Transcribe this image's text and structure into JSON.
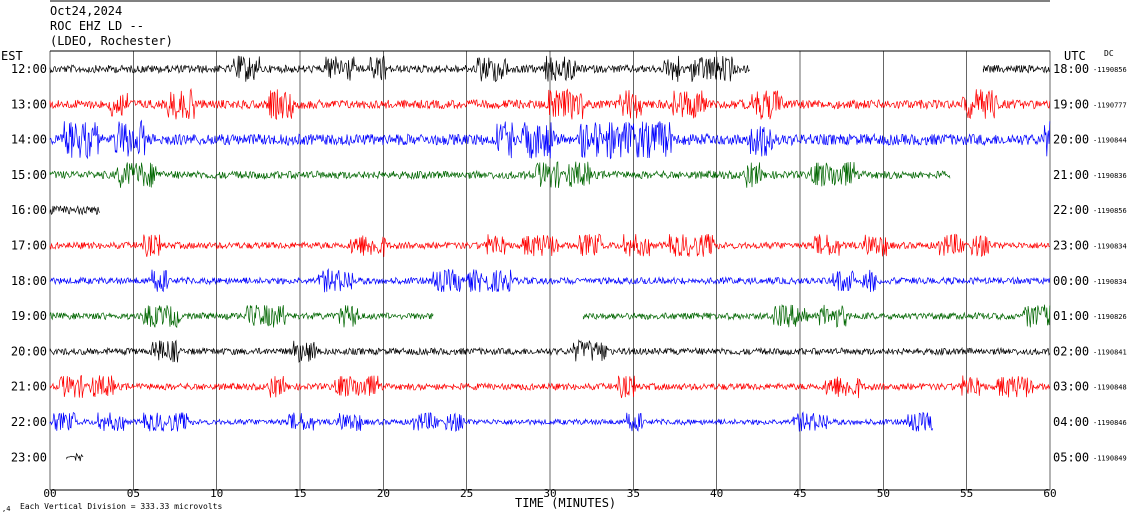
{
  "header": {
    "date": "Oct24,2024",
    "station": "ROC EHZ LD --",
    "network": "(LDEO, Rochester)"
  },
  "chart_data": {
    "type": "line",
    "title": "",
    "left_axis_title": "EST",
    "right_axis_title": "UTC",
    "dc_label": "DC",
    "xlabel": "TIME (MINUTES)",
    "xlim": [
      0,
      60
    ],
    "x_ticks": [
      "00",
      "05",
      "10",
      "15",
      "20",
      "25",
      "30",
      "35",
      "40",
      "45",
      "50",
      "55",
      "60"
    ],
    "scale_note": "Each Vertical Division =  333.33 microvolts",
    "grid": true,
    "rows": [
      {
        "est": "12:00",
        "utc": "18:00",
        "dc": "-1190856",
        "color": "#000000",
        "amp": 7,
        "segments": [
          [
            0,
            42
          ],
          [
            56,
            60
          ]
        ]
      },
      {
        "est": "13:00",
        "utc": "19:00",
        "dc": "-1190777",
        "color": "#ff0000",
        "amp": 8,
        "segments": [
          [
            0,
            60
          ]
        ]
      },
      {
        "est": "14:00",
        "utc": "20:00",
        "dc": "-1190844",
        "color": "#0000ff",
        "amp": 10,
        "segments": [
          [
            0,
            60
          ]
        ]
      },
      {
        "est": "15:00",
        "utc": "21:00",
        "dc": "-1190836",
        "color": "#006600",
        "amp": 7,
        "segments": [
          [
            0,
            54
          ]
        ]
      },
      {
        "est": "16:00",
        "utc": "22:00",
        "dc": "-1190856",
        "color": "#000000",
        "amp": 8,
        "segments": [
          [
            0,
            3
          ]
        ]
      },
      {
        "est": "17:00",
        "utc": "23:00",
        "dc": "-1190834",
        "color": "#ff0000",
        "amp": 6,
        "segments": [
          [
            0,
            60
          ]
        ]
      },
      {
        "est": "18:00",
        "utc": "00:00",
        "dc": "-1190834",
        "color": "#0000ff",
        "amp": 6,
        "segments": [
          [
            0,
            60
          ]
        ]
      },
      {
        "est": "19:00",
        "utc": "01:00",
        "dc": "-1190826",
        "color": "#006600",
        "amp": 6,
        "segments": [
          [
            0,
            23
          ],
          [
            32,
            60
          ]
        ]
      },
      {
        "est": "20:00",
        "utc": "02:00",
        "dc": "-1190841",
        "color": "#000000",
        "amp": 6,
        "segments": [
          [
            0,
            60
          ]
        ]
      },
      {
        "est": "21:00",
        "utc": "03:00",
        "dc": "-1190848",
        "color": "#ff0000",
        "amp": 6,
        "segments": [
          [
            0,
            60
          ]
        ]
      },
      {
        "est": "22:00",
        "utc": "04:00",
        "dc": "-1190846",
        "color": "#0000ff",
        "amp": 5,
        "segments": [
          [
            0,
            53
          ]
        ]
      },
      {
        "est": "23:00",
        "utc": "05:00",
        "dc": "-1190849",
        "color": "#000000",
        "amp": 2,
        "segments": [
          [
            1,
            2
          ]
        ]
      }
    ]
  }
}
